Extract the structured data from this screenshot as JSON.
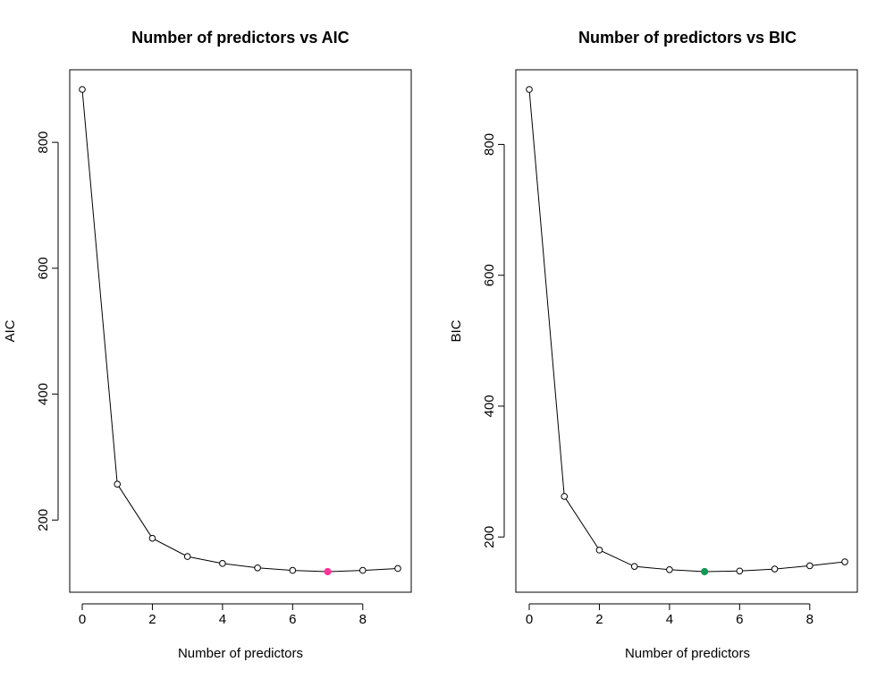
{
  "chart_data": [
    {
      "type": "line",
      "title": "Number of predictors vs AIC",
      "xlabel": "Number of predictors",
      "ylabel": "AIC",
      "x": [
        0,
        1,
        2,
        3,
        4,
        5,
        6,
        7,
        8,
        9
      ],
      "series": [
        {
          "values": [
            884,
            257,
            171,
            142,
            131,
            124,
            120,
            118,
            120,
            123
          ]
        }
      ],
      "highlight": {
        "x": 7,
        "y": 118,
        "color": "#ff3399"
      },
      "xlim": [
        0,
        9
      ],
      "ylim": [
        118,
        884
      ],
      "xticks": [
        0,
        2,
        4,
        6,
        8
      ],
      "yticks": [
        200,
        400,
        600,
        800
      ],
      "grid": false
    },
    {
      "type": "line",
      "title": "Number of predictors vs BIC",
      "xlabel": "Number of predictors",
      "ylabel": "BIC",
      "x": [
        0,
        1,
        2,
        3,
        4,
        5,
        6,
        7,
        8,
        9
      ],
      "series": [
        {
          "values": [
            884,
            262,
            180,
            155,
            150,
            147,
            148,
            151,
            156,
            162
          ]
        }
      ],
      "highlight": {
        "x": 5,
        "y": 147,
        "color": "#119955"
      },
      "xlim": [
        0,
        9
      ],
      "ylim": [
        147,
        884
      ],
      "xticks": [
        0,
        2,
        4,
        6,
        8
      ],
      "yticks": [
        200,
        400,
        600,
        800
      ],
      "grid": false
    }
  ]
}
